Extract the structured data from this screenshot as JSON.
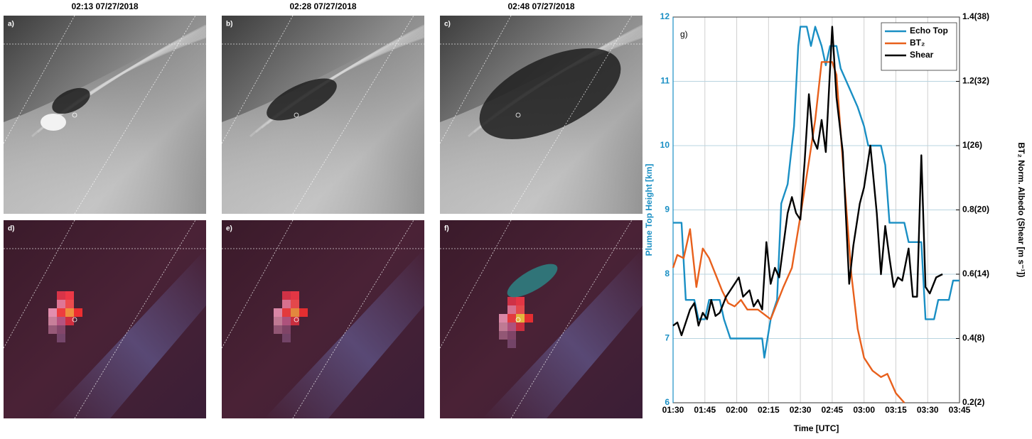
{
  "panels": [
    {
      "title": "02:13 07/27/2018",
      "label": "a)"
    },
    {
      "title": "02:28 07/27/2018",
      "label": "b)"
    },
    {
      "title": "02:48 07/27/2018",
      "label": "c)"
    },
    {
      "label": "d)"
    },
    {
      "label": "e)"
    },
    {
      "label": "f)"
    }
  ],
  "chart_data": {
    "type": "line",
    "annotation": "g)",
    "xlabel": "Time [UTC]",
    "ylabel": "Plume Top Height [km]",
    "y2label": "BT₂ Norm. Albedo (Shear [m s⁻¹])",
    "xlim": [
      "01:30",
      "03:45"
    ],
    "xticks": [
      "01:30",
      "01:45",
      "02:00",
      "02:15",
      "02:30",
      "02:45",
      "03:00",
      "03:15",
      "03:30",
      "03:45"
    ],
    "ylim": [
      6,
      12
    ],
    "yticks": [
      6,
      7,
      8,
      9,
      10,
      11,
      12
    ],
    "y2lim": [
      0.2,
      1.4
    ],
    "y2ticks": [
      {
        "value": 0.2,
        "label": "0.2(2)"
      },
      {
        "value": 0.4,
        "label": "0.4(8)"
      },
      {
        "value": 0.6,
        "label": "0.6(14)"
      },
      {
        "value": 0.8,
        "label": "0.8(20)"
      },
      {
        "value": 1,
        "label": "1(26)"
      },
      {
        "value": 1.2,
        "label": "1.2(32)"
      },
      {
        "value": 1.4,
        "label": "1.4(38)"
      }
    ],
    "grid": true,
    "legend": "upper right",
    "series": [
      {
        "name": "Echo Top",
        "color": "#1a8fc4",
        "x": [
          "01:30",
          "01:34",
          "01:36",
          "01:40",
          "01:42",
          "01:45",
          "01:47",
          "01:52",
          "01:54",
          "01:57",
          "02:12",
          "02:13",
          "02:16",
          "02:19",
          "02:21",
          "02:24",
          "02:27",
          "02:29",
          "02:30",
          "02:33",
          "02:35",
          "02:37",
          "02:40",
          "02:42",
          "02:44",
          "02:47",
          "02:49",
          "02:53",
          "02:57",
          "03:00",
          "03:02",
          "03:08",
          "03:10",
          "03:12",
          "03:19",
          "03:21",
          "03:27",
          "03:29",
          "03:33",
          "03:35",
          "03:40",
          "03:42",
          "03:45"
        ],
        "values": [
          8.8,
          8.8,
          7.6,
          7.6,
          7.3,
          7.3,
          7.6,
          7.6,
          7.3,
          7.0,
          7.0,
          6.7,
          7.3,
          7.6,
          9.1,
          9.4,
          10.3,
          11.55,
          11.85,
          11.85,
          11.55,
          11.85,
          11.55,
          11.25,
          11.55,
          11.55,
          11.2,
          10.9,
          10.6,
          10.3,
          10.0,
          10.0,
          9.7,
          8.8,
          8.8,
          8.5,
          8.5,
          7.3,
          7.3,
          7.6,
          7.6,
          7.9,
          7.9
        ]
      },
      {
        "name": "BT₂",
        "color": "#e8601c",
        "axis": "y2",
        "x": [
          "01:30",
          "01:32",
          "01:35",
          "01:38",
          "01:41",
          "01:44",
          "01:47",
          "01:50",
          "01:53",
          "01:56",
          "01:59",
          "02:02",
          "02:05",
          "02:10",
          "02:16",
          "02:22",
          "02:26",
          "02:30",
          "02:34",
          "02:37",
          "02:40",
          "02:45",
          "02:47",
          "02:50",
          "02:54",
          "02:57",
          "03:00",
          "03:04",
          "03:08",
          "03:11",
          "03:15",
          "03:19"
        ],
        "values": [
          0.62,
          0.66,
          0.65,
          0.74,
          0.56,
          0.68,
          0.65,
          0.6,
          0.55,
          0.51,
          0.5,
          0.52,
          0.49,
          0.49,
          0.46,
          0.56,
          0.62,
          0.78,
          0.95,
          1.08,
          1.26,
          1.26,
          1.22,
          0.95,
          0.6,
          0.43,
          0.34,
          0.3,
          0.28,
          0.29,
          0.23,
          0.2
        ]
      },
      {
        "name": "Shear",
        "color": "#000000",
        "axis": "y2",
        "x": [
          "01:30",
          "01:32",
          "01:34",
          "01:38",
          "01:40",
          "01:42",
          "01:44",
          "01:46",
          "01:48",
          "01:50",
          "01:52",
          "01:55",
          "01:58",
          "02:01",
          "02:03",
          "02:06",
          "02:08",
          "02:10",
          "02:12",
          "02:14",
          "02:16",
          "02:18",
          "02:20",
          "02:22",
          "02:24",
          "02:26",
          "02:28",
          "02:30",
          "02:32",
          "02:34",
          "02:36",
          "02:38",
          "02:40",
          "02:42",
          "02:45",
          "02:47",
          "02:50",
          "02:53",
          "02:55",
          "02:58",
          "03:00",
          "03:03",
          "03:06",
          "03:08",
          "03:10",
          "03:12",
          "03:14",
          "03:16",
          "03:18",
          "03:21",
          "03:23",
          "03:25",
          "03:27",
          "03:29",
          "03:31",
          "03:34",
          "03:37"
        ],
        "values": [
          0.44,
          0.45,
          0.41,
          0.49,
          0.51,
          0.44,
          0.48,
          0.46,
          0.52,
          0.47,
          0.48,
          0.53,
          0.56,
          0.59,
          0.53,
          0.55,
          0.5,
          0.52,
          0.49,
          0.7,
          0.57,
          0.62,
          0.59,
          0.69,
          0.79,
          0.84,
          0.79,
          0.77,
          0.95,
          1.16,
          1.02,
          0.99,
          1.08,
          0.98,
          1.37,
          1.15,
          0.98,
          0.57,
          0.69,
          0.82,
          0.87,
          1.0,
          0.79,
          0.6,
          0.75,
          0.65,
          0.56,
          0.59,
          0.58,
          0.68,
          0.53,
          0.53,
          0.97,
          0.56,
          0.54,
          0.59,
          0.6
        ]
      }
    ]
  }
}
